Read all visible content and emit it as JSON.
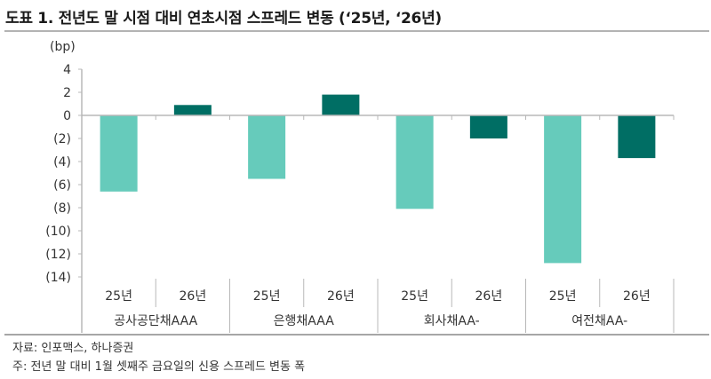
{
  "title": "도표 1. 전년도 말 시점 대비 연초시점 스프레드 변동 (‘25년, ‘26년)",
  "source": "자료: 인포맥스, 하나증권",
  "footnote": "주: 전년 말 대비 1월 셋째주 금요일의 신용 스프레드 변동 폭",
  "colors": {
    "y25": "#66CBBB",
    "y26": "#006E64",
    "axis": "#b8b8b8"
  },
  "chart_data": {
    "type": "bar",
    "title": "전년도 말 시점 대비 연초시점 스프레드 변동 (‘25년, ‘26년)",
    "ylabel": "(bp)",
    "xlabel": "",
    "ylim": [
      -14,
      4
    ],
    "yticks": [
      4,
      2,
      0,
      -2,
      -4,
      -6,
      -8,
      -10,
      -12,
      -14
    ],
    "ytick_labels": [
      "4",
      "2",
      "0",
      "(2)",
      "(4)",
      "(6)",
      "(8)",
      "(10)",
      "(12)",
      "(14)"
    ],
    "grid": false,
    "legend": "none",
    "groups": [
      "공사공단채AAA",
      "은행채AAA",
      "회사채AA-",
      "여전채AA-"
    ],
    "subcategories": [
      "25년",
      "26년"
    ],
    "series": [
      {
        "name": "25년",
        "values": [
          -6.6,
          -5.5,
          -8.1,
          -12.8
        ]
      },
      {
        "name": "26년",
        "values": [
          0.9,
          1.8,
          -2.0,
          -3.7
        ]
      }
    ]
  }
}
